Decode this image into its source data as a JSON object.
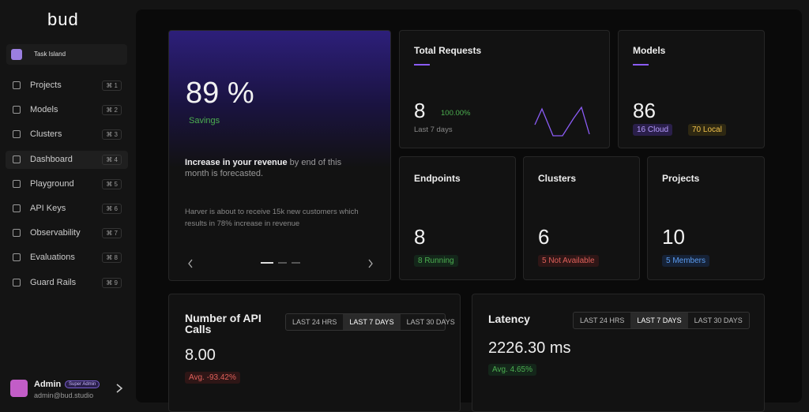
{
  "sidebar": {
    "logo": "bud",
    "workspace": "Task Island",
    "nav": [
      {
        "label": "Projects",
        "shortcut": "⌘ 1"
      },
      {
        "label": "Models",
        "shortcut": "⌘ 2"
      },
      {
        "label": "Clusters",
        "shortcut": "⌘ 3"
      },
      {
        "label": "Dashboard",
        "shortcut": "⌘ 4"
      },
      {
        "label": "Playground",
        "shortcut": "⌘ 5"
      },
      {
        "label": "API Keys",
        "shortcut": "⌘ 6"
      },
      {
        "label": "Observability",
        "shortcut": "⌘ 7"
      },
      {
        "label": "Evaluations",
        "shortcut": "⌘ 8"
      },
      {
        "label": "Guard Rails",
        "shortcut": "⌘ 9"
      }
    ],
    "user": {
      "name": "Admin",
      "badge": "Super Admin",
      "email": "admin@bud.studio"
    }
  },
  "hero": {
    "value": "89 %",
    "trend": "Savings",
    "headline": "Increase in your revenue",
    "headline_rest": " by end of this month is forecasted.",
    "note": "Harver is about to receive 15k new customers which results in 78% increase in revenue"
  },
  "total_requests": {
    "title": "Total Requests",
    "value": "8",
    "change": "100.00%",
    "period": "Last 7 days"
  },
  "models": {
    "title": "Models",
    "value": "86",
    "cloud": "16 Cloud",
    "local": "70 Local"
  },
  "endpoints": {
    "title": "Endpoints",
    "value": "8",
    "status": "8 Running"
  },
  "clusters": {
    "title": "Clusters",
    "value": "6",
    "status": "5 Not Available"
  },
  "projects": {
    "title": "Projects",
    "value": "10",
    "status": "5 Members"
  },
  "api_calls": {
    "title": "Number of API Calls",
    "value": "8.00",
    "avg": "Avg. -93.42%",
    "tabs": [
      "LAST 24 HRS",
      "LAST 7 DAYS",
      "LAST 30 DAYS"
    ]
  },
  "latency": {
    "title": "Latency",
    "value": "2226.30 ms",
    "avg": "Avg. 4.65%",
    "tabs": [
      "LAST 24 HRS",
      "LAST 7 DAYS",
      "LAST 30 DAYS"
    ]
  }
}
